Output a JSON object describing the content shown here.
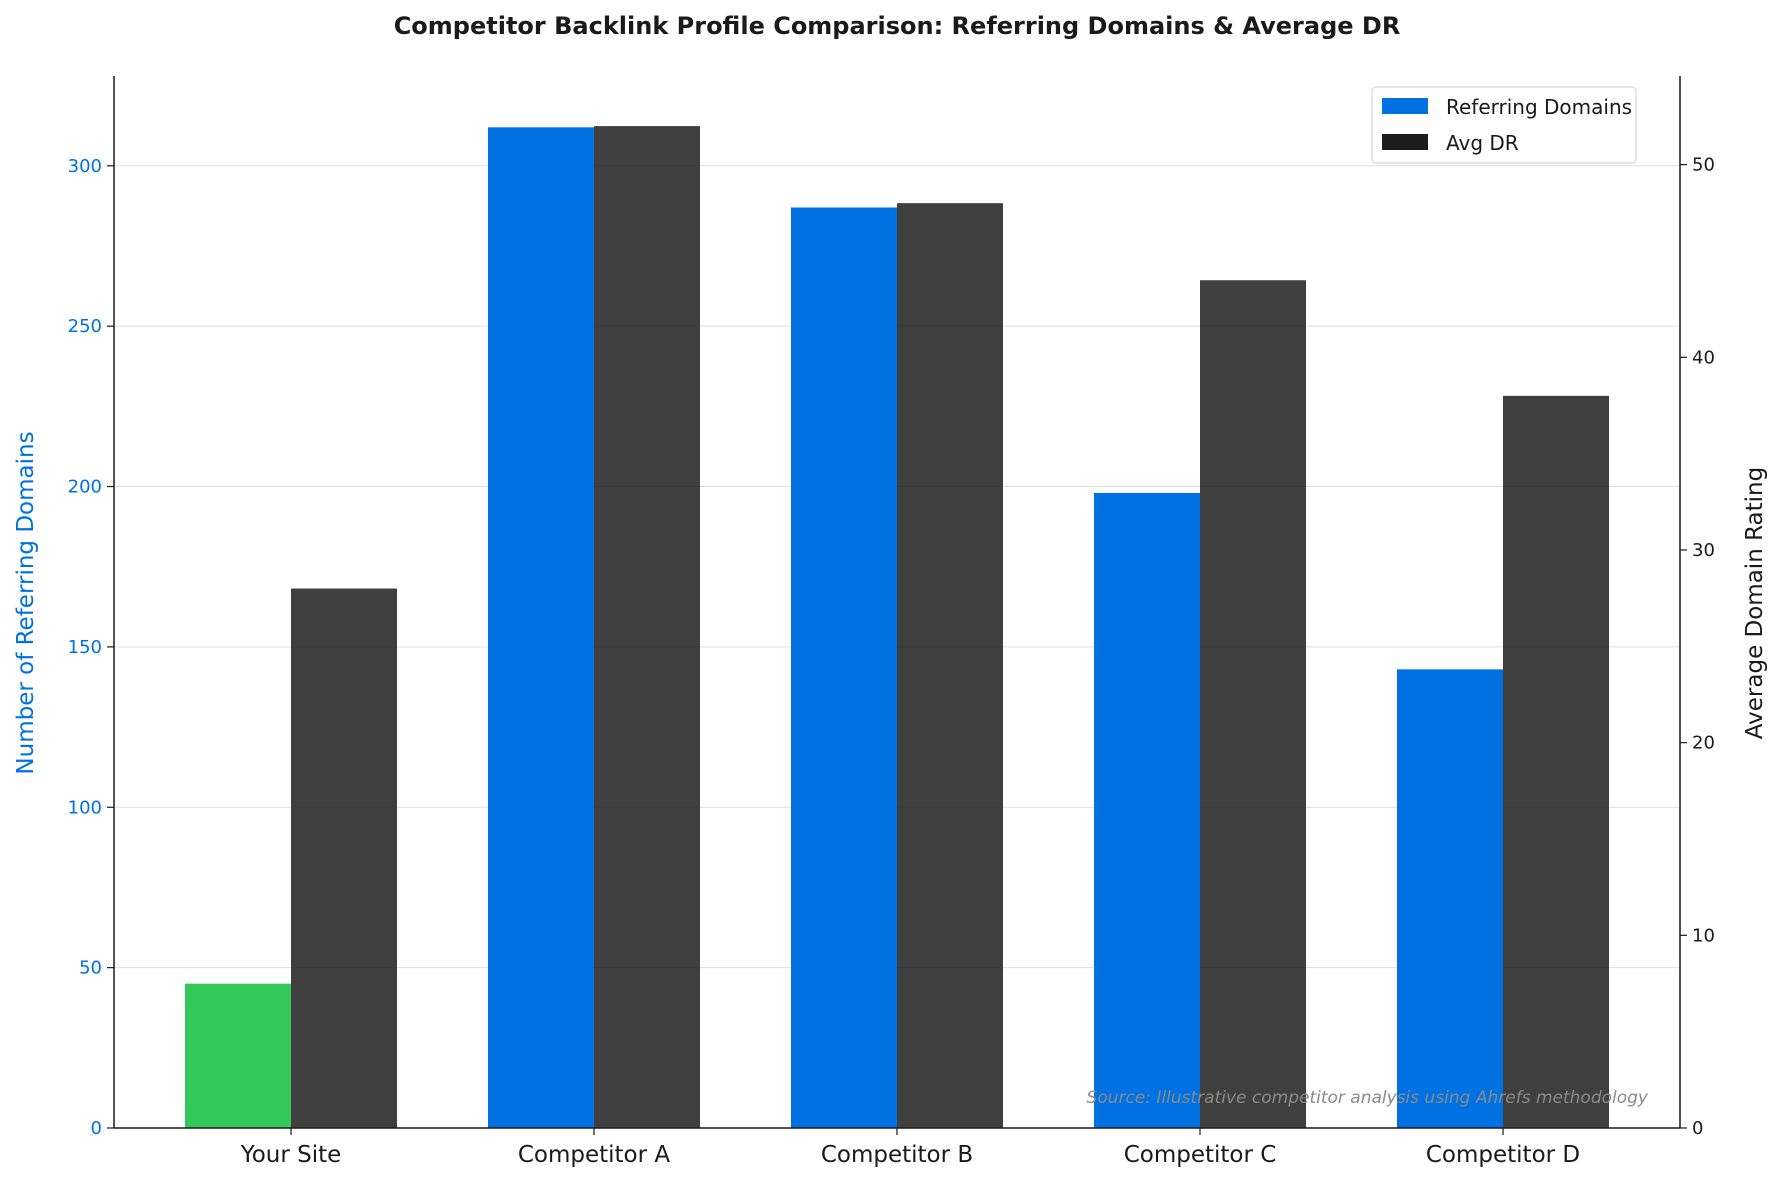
{
  "chart_data": {
    "type": "bar",
    "title": "Competitor Backlink Profile Comparison: Referring Domains & Average DR",
    "categories": [
      "Your Site",
      "Competitor A",
      "Competitor B",
      "Competitor C",
      "Competitor D"
    ],
    "series": [
      {
        "name": "Referring Domains",
        "axis": "left",
        "color": "#0071e3",
        "highlight_color": "#34c759",
        "highlight_index": 0,
        "values": [
          45,
          312,
          287,
          198,
          143
        ]
      },
      {
        "name": "Avg DR",
        "axis": "right",
        "color": "#1d1d1f",
        "values": [
          28,
          52,
          48,
          44,
          38
        ]
      }
    ],
    "ylabel": "Number of Referring Domains",
    "ylabel_right": "Average Domain Rating",
    "ylim": [
      0,
      328
    ],
    "ylim_right": [
      0,
      54.6
    ],
    "yticks": [
      "0",
      "50",
      "100",
      "150",
      "200",
      "250",
      "300"
    ],
    "yticks_right": [
      "0",
      "10",
      "20",
      "30",
      "40",
      "50"
    ],
    "grid": "horizontal",
    "legend_position": "top-right",
    "annotation": "Source: Illustrative competitor analysis using Ahrefs methodology"
  }
}
